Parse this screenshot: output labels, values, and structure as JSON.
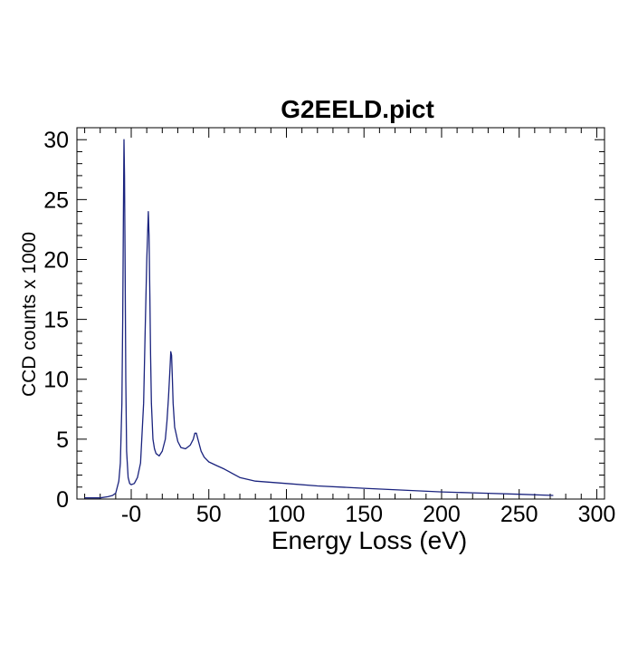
{
  "chart_data": {
    "type": "line",
    "title": "G2EELD.pict",
    "xlabel": "Energy Loss (eV)",
    "ylabel": "CCD counts x 1000",
    "xlim": [
      -35,
      305
    ],
    "ylim": [
      0,
      31
    ],
    "x_ticks": [
      0,
      50,
      100,
      150,
      200,
      250,
      300
    ],
    "x_tick_labels": [
      "-0",
      "50",
      "100",
      "150",
      "200",
      "250",
      "300"
    ],
    "y_ticks": [
      0,
      5,
      10,
      15,
      20,
      25,
      30
    ],
    "y_tick_labels": [
      "0",
      "5",
      "10",
      "15",
      "20",
      "25",
      "30"
    ],
    "grid": false,
    "legend": "none",
    "colors": {
      "line": "#1a237e",
      "axes": "#000000",
      "background": "#ffffff"
    },
    "series": [
      {
        "x": [
          -30,
          -20,
          -15,
          -12,
          -10,
          -8,
          -7,
          -6,
          -5.5,
          -5,
          -4.7,
          -4.3,
          -4,
          -3.5,
          -3,
          -2,
          -1,
          0,
          2,
          4,
          6,
          8,
          9,
          10,
          11,
          11.5,
          12,
          12.5,
          13,
          14,
          15,
          16,
          18,
          20,
          22,
          23,
          24,
          25,
          25.5,
          26,
          26.5,
          27,
          28,
          30,
          32,
          35,
          38,
          40,
          41,
          42,
          43,
          45,
          47,
          50,
          55,
          60,
          70,
          80,
          100,
          120,
          150,
          175,
          200,
          225,
          250,
          272
        ],
        "values": [
          0.1,
          0.1,
          0.2,
          0.3,
          0.5,
          1.5,
          3,
          8,
          15,
          24,
          30,
          27,
          20,
          10,
          4,
          1.8,
          1.3,
          1.2,
          1.3,
          1.8,
          3,
          8,
          14,
          20,
          24,
          22,
          17,
          12,
          8,
          5,
          4.2,
          3.8,
          3.6,
          4,
          5,
          6.5,
          8.5,
          11,
          12.3,
          12,
          10,
          8,
          6,
          4.8,
          4.3,
          4.2,
          4.5,
          5,
          5.5,
          5.5,
          5,
          4,
          3.5,
          3.1,
          2.8,
          2.5,
          1.8,
          1.5,
          1.3,
          1.1,
          0.9,
          0.75,
          0.6,
          0.5,
          0.4,
          0.3
        ]
      }
    ]
  }
}
